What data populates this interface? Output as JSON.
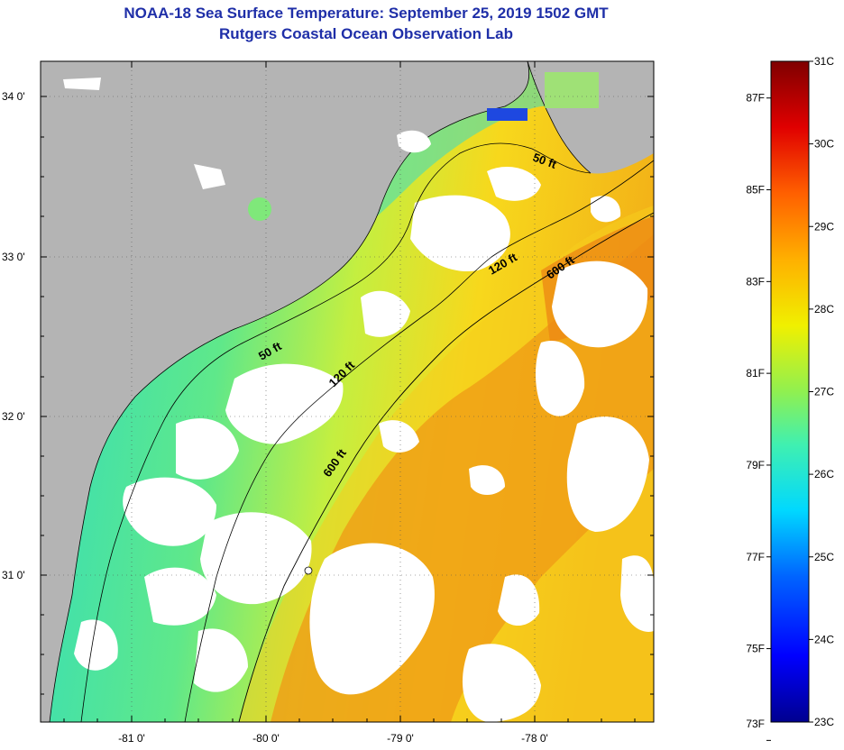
{
  "title": {
    "line1": "NOAA-18 Sea Surface Temperature:  September 25, 2019 1502 GMT",
    "line2": "Rutgers Coastal Ocean Observation Lab"
  },
  "map": {
    "lat_ticks": [
      "34 0'",
      "33 0'",
      "32 0'",
      "31 0'"
    ],
    "lon_ticks": [
      "-81 0'",
      "-80 0'",
      "-79 0'",
      "-78 0'"
    ],
    "contours": [
      {
        "label": "50 ft"
      },
      {
        "label": "50 ft"
      },
      {
        "label": "120 ft"
      },
      {
        "label": "120 ft"
      },
      {
        "label": "600 ft"
      },
      {
        "label": "600 ft"
      }
    ],
    "colors": {
      "land": "#b4b4b4",
      "cloud": "#ffffff",
      "shelf_water": "#3fe0b0",
      "mid_water": "#b6ef4c",
      "gulf_stream": "#ef9a16"
    }
  },
  "colorbar": {
    "celsius_labels": [
      "31C",
      "30C",
      "29C",
      "28C",
      "27C",
      "26C",
      "25C",
      "24C",
      "23C"
    ],
    "fahrenheit_labels": [
      "87F",
      "85F",
      "83F",
      "81F",
      "79F",
      "77F",
      "75F",
      "73F"
    ],
    "colors": [
      "#00008f",
      "#0000ff",
      "#008cff",
      "#00f0ff",
      "#48f2a0",
      "#a8f040",
      "#ffff00",
      "#ffa000",
      "#ff3000",
      "#c00000",
      "#7f0000"
    ]
  }
}
